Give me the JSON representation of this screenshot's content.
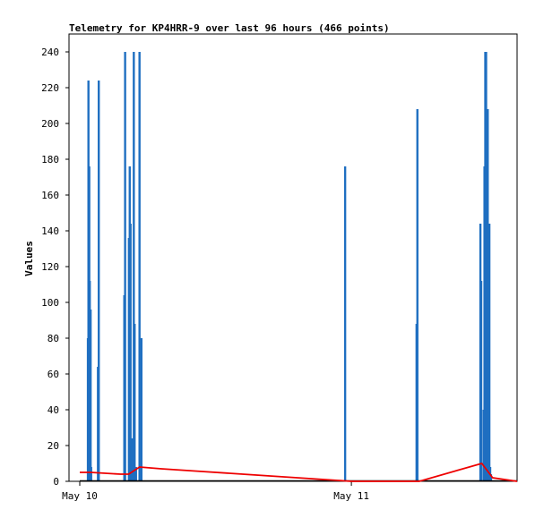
{
  "chart_data": {
    "type": "bar",
    "title": "Telemetry for KP4HRR-9 over last 96 hours (466 points)",
    "xlabel": "",
    "ylabel": "Values",
    "x_tick_labels": [
      "May 10",
      "May 11"
    ],
    "x_tick_days": [
      0,
      1
    ],
    "xlim_days": [
      0,
      1.61
    ],
    "ylim": [
      0,
      250
    ],
    "y_ticks": [
      0,
      20,
      40,
      60,
      80,
      100,
      120,
      140,
      160,
      180,
      200,
      220,
      240
    ],
    "grid": false,
    "legend": "none",
    "colors": {
      "bars": "#1f6fc1",
      "line": "#ee0000",
      "baseline": "#000000"
    },
    "series": [
      {
        "style": "bars",
        "x": [
          0.03,
          0.032,
          0.035,
          0.037,
          0.04,
          0.042,
          0.067,
          0.07,
          0.164,
          0.167,
          0.181,
          0.184,
          0.187,
          0.19,
          0.193,
          0.199,
          0.202,
          0.207,
          0.22,
          0.227,
          0.977,
          1.24,
          1.243,
          1.475,
          1.478,
          1.487,
          1.49,
          1.493,
          1.496,
          1.499,
          1.502,
          1.505,
          1.508,
          1.511,
          1.514
        ],
        "values": [
          80,
          224,
          176,
          112,
          96,
          8,
          64,
          224,
          104,
          240,
          136,
          176,
          144,
          20,
          24,
          240,
          88,
          8,
          240,
          80,
          176,
          88,
          208,
          144,
          112,
          40,
          176,
          240,
          240,
          176,
          208,
          30,
          144,
          8,
          4
        ]
      },
      {
        "style": "line",
        "x": [
          0.0,
          0.04,
          0.15,
          0.18,
          0.22,
          0.3,
          0.45,
          0.6,
          0.75,
          0.9,
          0.95,
          1.0,
          1.25,
          1.48,
          1.5,
          1.52,
          1.61
        ],
        "values": [
          5,
          5,
          4,
          4,
          8,
          7,
          5.5,
          4,
          2.5,
          1,
          0.5,
          0,
          0,
          10,
          6,
          2,
          0
        ]
      }
    ]
  }
}
